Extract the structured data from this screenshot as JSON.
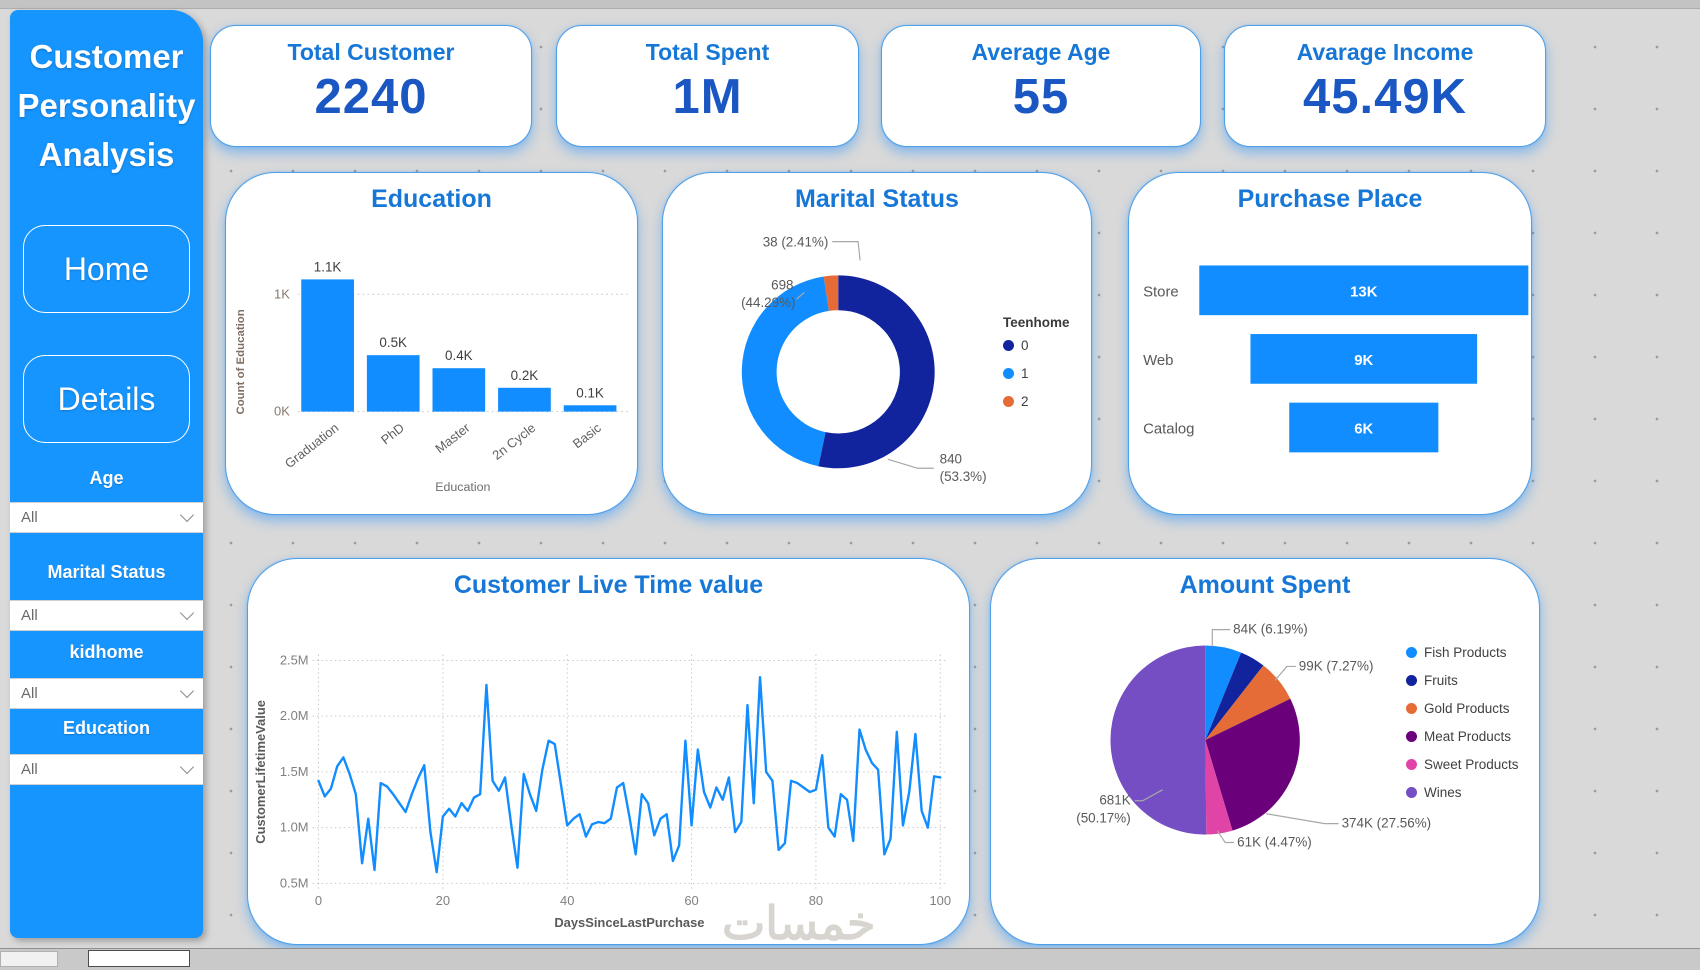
{
  "app": {
    "watermark": "خمسات"
  },
  "sidebar": {
    "title_lines": [
      "Customer",
      "Personality",
      "Analysis"
    ],
    "buttons": [
      {
        "label": "Home"
      },
      {
        "label": "Details"
      }
    ],
    "filters": [
      {
        "label": "Age",
        "value": "All"
      },
      {
        "label": "Marital Status",
        "value": "All"
      },
      {
        "label": "kidhome",
        "value": "All"
      },
      {
        "label": "Education",
        "value": "All"
      }
    ]
  },
  "kpis": [
    {
      "title": "Total Customer",
      "value": "2240"
    },
    {
      "title": "Total Spent",
      "value": "1M"
    },
    {
      "title": "Average Age",
      "value": "55"
    },
    {
      "title": "Avarage Income",
      "value": "45.49K"
    }
  ],
  "chart_data": [
    {
      "id": "education",
      "type": "bar",
      "title": "Education",
      "categories": [
        "Graduation",
        "PhD",
        "Master",
        "2n Cycle",
        "Basic"
      ],
      "values": [
        1127,
        481,
        370,
        203,
        54
      ],
      "values_display": [
        "1.1K",
        "0.5K",
        "0.4K",
        "0.2K",
        "0.1K"
      ],
      "xlabel": "Education",
      "ylabel": "Count of Education",
      "yticks": [
        "0K",
        "1K"
      ],
      "ylim": [
        0,
        1250
      ],
      "bar_color": "#118DFF",
      "grid": "dotted"
    },
    {
      "id": "marital",
      "type": "donut",
      "title": "Marital Status",
      "legend_title": "Teenhome",
      "legend_position": "right",
      "slices": [
        {
          "name": "0",
          "value": 840,
          "pct": 53.3,
          "color": "#12239E",
          "label_lines": [
            "840",
            "(53.3%)"
          ]
        },
        {
          "name": "1",
          "value": 698,
          "pct": 44.29,
          "color": "#118DFF",
          "label_lines": [
            "698",
            "(44.29%)"
          ]
        },
        {
          "name": "2",
          "value": 38,
          "pct": 2.41,
          "color": "#E66C37",
          "label_lines": [
            "38 (2.41%)"
          ]
        }
      ]
    },
    {
      "id": "purchase",
      "type": "funnel",
      "title": "Purchase Place",
      "categories": [
        "Store",
        "Web",
        "Catalog"
      ],
      "values": [
        13,
        9,
        6
      ],
      "labels": [
        "13K",
        "9K",
        "6K"
      ],
      "bar_color": "#118DFF"
    },
    {
      "id": "clv",
      "type": "line",
      "title": "Customer Live Time value",
      "xlabel": "DaysSinceLastPurchase",
      "ylabel": "CustomerLifetimeValue",
      "xticks": [
        0,
        20,
        40,
        60,
        80,
        100
      ],
      "yticks": [
        "0.5M",
        "1.0M",
        "1.5M",
        "2.0M",
        "2.5M"
      ],
      "xlim": [
        0,
        100
      ],
      "ylim": [
        0.5,
        2.5
      ],
      "grid": "dotted",
      "line_color": "#118DFF",
      "values_millions": [
        1.42,
        1.28,
        1.35,
        1.55,
        1.63,
        1.48,
        1.3,
        0.68,
        1.08,
        0.62,
        1.4,
        1.37,
        1.3,
        1.22,
        1.14,
        1.3,
        1.44,
        1.56,
        0.96,
        0.6,
        1.1,
        1.17,
        1.1,
        1.22,
        1.15,
        1.27,
        1.3,
        2.28,
        1.42,
        1.33,
        1.45,
        1.02,
        0.64,
        1.48,
        1.3,
        1.15,
        1.52,
        1.78,
        1.75,
        1.38,
        1.02,
        1.08,
        1.12,
        0.92,
        1.03,
        1.05,
        1.04,
        1.08,
        1.36,
        1.4,
        1.1,
        0.76,
        1.3,
        1.22,
        0.93,
        1.08,
        1.12,
        0.7,
        0.84,
        1.78,
        1.02,
        1.7,
        1.32,
        1.18,
        1.36,
        1.25,
        1.45,
        0.96,
        1.05,
        2.1,
        1.22,
        2.35,
        1.5,
        1.42,
        0.8,
        0.86,
        1.42,
        1.4,
        1.36,
        1.32,
        1.34,
        1.65,
        1.0,
        0.92,
        1.3,
        1.25,
        0.88,
        1.88,
        1.7,
        1.58,
        1.52,
        0.76,
        0.9,
        1.86,
        1.02,
        1.32,
        1.84,
        1.15,
        1.0,
        1.46,
        1.45
      ]
    },
    {
      "id": "amount",
      "type": "pie",
      "title": "Amount Spent",
      "legend_position": "right",
      "slices": [
        {
          "name": "Fish Products",
          "value_display": "84K",
          "pct": 6.19,
          "color": "#118DFF",
          "label_lines": [
            "84K (6.19%)"
          ]
        },
        {
          "name": "Fruits",
          "pct": 4.34,
          "color": "#12239E",
          "label_lines": []
        },
        {
          "name": "Gold Products",
          "value_display": "99K",
          "pct": 7.27,
          "color": "#E66C37",
          "label_lines": [
            "99K (7.27%)"
          ]
        },
        {
          "name": "Meat Products",
          "value_display": "374K",
          "pct": 27.56,
          "color": "#6B007B",
          "label_lines": [
            "374K (27.56%)"
          ]
        },
        {
          "name": "Sweet Products",
          "value_display": "61K",
          "pct": 4.47,
          "color": "#E044A7",
          "label_lines": [
            "61K (4.47%)"
          ]
        },
        {
          "name": "Wines",
          "value_display": "681K",
          "pct": 50.17,
          "color": "#744EC2",
          "label_lines": [
            "681K",
            "(50.17%)"
          ]
        }
      ]
    }
  ]
}
